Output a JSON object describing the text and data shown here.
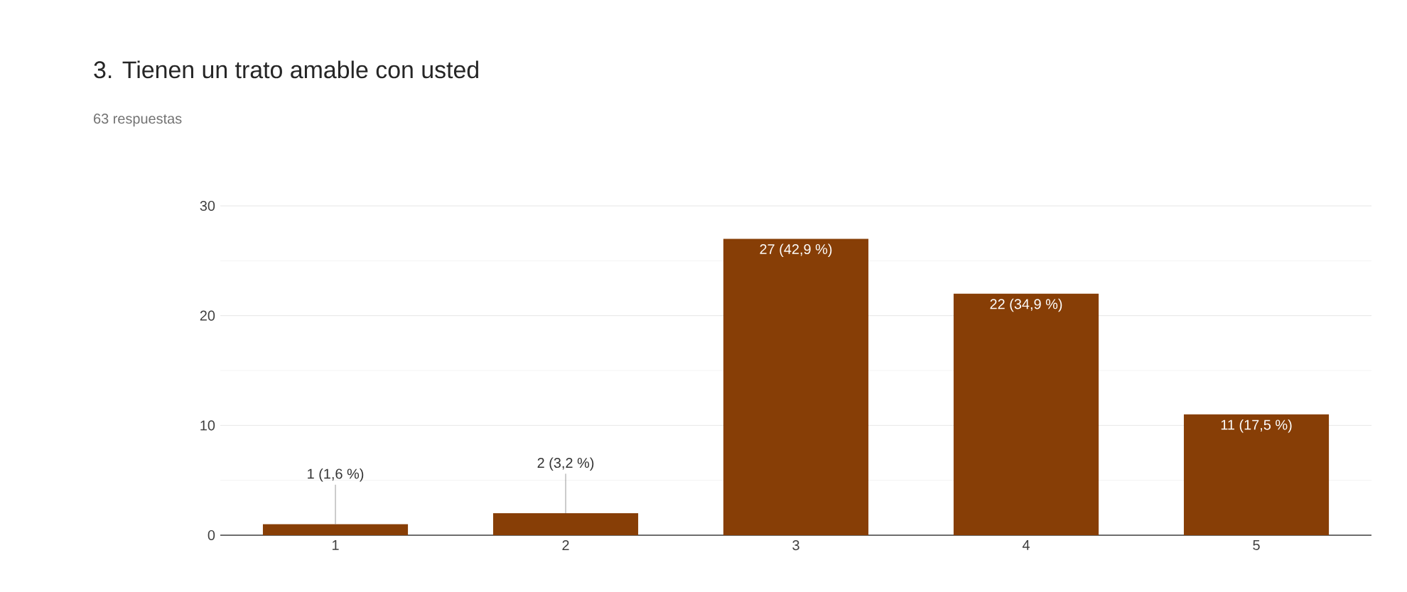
{
  "chart_data": {
    "type": "bar",
    "title": "3. Tienen un trato amable con usted",
    "subtitle": "63 respuestas",
    "categories": [
      "1",
      "2",
      "3",
      "4",
      "5"
    ],
    "values": [
      1,
      2,
      27,
      22,
      11
    ],
    "value_labels": [
      "1 (1,6 %)",
      "2 (3,2 %)",
      "27 (42,9 %)",
      "22 (34,9 %)",
      "11 (17,5 %)"
    ],
    "color": "#873e06",
    "ylim": [
      0,
      30
    ],
    "yticks": [
      0,
      10,
      20,
      30
    ],
    "grid": true
  }
}
